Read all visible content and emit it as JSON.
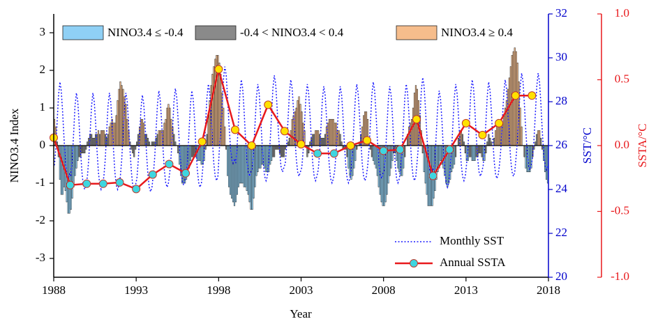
{
  "chart_data": {
    "type": "combo",
    "xlabel": "Year",
    "ylabel": "NINO3.4 Index",
    "y2label": "SST/°C",
    "y3label": "SSTA/°C",
    "x": [
      1988,
      1989,
      1990,
      1991,
      1992,
      1993,
      1994,
      1995,
      1996,
      1997,
      1998,
      1999,
      2000,
      2001,
      2002,
      2003,
      2004,
      2005,
      2006,
      2007,
      2008,
      2009,
      2010,
      2011,
      2012,
      2013,
      2014,
      2015,
      2016,
      2017
    ],
    "xlim": [
      1988,
      2018
    ],
    "xticks": [
      1988,
      1993,
      1998,
      2003,
      2008,
      2013,
      2018
    ],
    "ylim": [
      -3.5,
      3.5
    ],
    "yticks": [
      -3,
      -2,
      -1,
      0,
      1,
      2,
      3
    ],
    "y2lim": [
      20,
      32
    ],
    "y2ticks": [
      20,
      22,
      24,
      26,
      28,
      30,
      32
    ],
    "y2color": "#0000cc",
    "y3lim": [
      -1,
      1
    ],
    "y3ticks": [
      {
        "value": -1,
        "label": "-1.0"
      },
      -0.5,
      {
        "value": 0,
        "label": "0.0"
      },
      0.5,
      {
        "value": 1,
        "label": "1.0"
      }
    ],
    "y3color": "#e8191c",
    "bars": {
      "classes": [
        {
          "name": "NINO3.4 ≤ -0.4",
          "color": "#8fd0f5",
          "max": -0.4
        },
        {
          "name": "-0.4 < NINO3.4  < 0.4",
          "color": "#8a8a8a"
        },
        {
          "name": "NINO3.4  ≥ 0.4",
          "color": "#f6bd8c",
          "min": 0.4
        }
      ],
      "values": [
        [
          0.7,
          0.5,
          0.1,
          -0.3,
          -0.9,
          -1.3,
          -1.3,
          -1.1,
          -1.2,
          -1.5,
          -1.8,
          -1.8
        ],
        [
          -1.7,
          -1.4,
          -1.1,
          -0.8,
          -0.6,
          -0.4,
          -0.3,
          -0.3,
          -0.2,
          -0.2,
          -0.2,
          -0.1
        ],
        [
          0.1,
          0.2,
          0.3,
          0.3,
          0.2,
          0.2,
          0.3,
          0.3,
          0.4,
          0.3,
          0.4,
          0.4
        ],
        [
          0.4,
          0.3,
          0.2,
          0.3,
          0.5,
          0.6,
          0.7,
          0.6,
          0.6,
          0.8,
          1.2,
          1.5
        ],
        [
          1.7,
          1.6,
          1.5,
          1.3,
          1.1,
          0.7,
          0.4,
          0.1,
          -0.1,
          -0.2,
          -0.3,
          -0.1
        ],
        [
          0.1,
          0.3,
          0.5,
          0.7,
          0.7,
          0.6,
          0.3,
          0.3,
          0.2,
          0.1,
          0.0,
          0.1
        ],
        [
          0.1,
          0.1,
          0.2,
          0.3,
          0.4,
          0.4,
          0.4,
          0.4,
          0.6,
          0.7,
          1.0,
          1.1
        ],
        [
          1.0,
          0.7,
          0.5,
          0.3,
          0.1,
          0.0,
          -0.2,
          -0.5,
          -0.8,
          -1.0,
          -1.0,
          -1.0
        ],
        [
          -0.9,
          -0.8,
          -0.6,
          -0.4,
          -0.3,
          -0.3,
          -0.3,
          -0.3,
          -0.4,
          -0.4,
          -0.4,
          -0.5
        ],
        [
          -0.5,
          -0.4,
          -0.1,
          0.3,
          0.8,
          1.2,
          1.6,
          1.9,
          2.1,
          2.3,
          2.4,
          2.4
        ],
        [
          2.2,
          1.9,
          1.4,
          1.0,
          0.5,
          -0.1,
          -0.8,
          -1.1,
          -1.3,
          -1.4,
          -1.5,
          -1.6
        ],
        [
          -1.5,
          -1.3,
          -1.1,
          -1.0,
          -1.0,
          -1.0,
          -1.1,
          -1.1,
          -1.2,
          -1.3,
          -1.5,
          -1.7
        ],
        [
          -1.7,
          -1.4,
          -1.1,
          -0.8,
          -0.7,
          -0.6,
          -0.6,
          -0.5,
          -0.5,
          -0.6,
          -0.7,
          -0.7
        ],
        [
          -0.7,
          -0.5,
          -0.4,
          -0.3,
          -0.3,
          -0.1,
          -0.1,
          -0.1,
          -0.2,
          -0.3,
          -0.3,
          -0.3
        ],
        [
          -0.1,
          0.0,
          0.1,
          0.2,
          0.4,
          0.7,
          0.8,
          0.9,
          1.0,
          1.2,
          1.3,
          1.1
        ],
        [
          0.9,
          0.6,
          0.4,
          0.0,
          -0.3,
          -0.2,
          0.1,
          0.2,
          0.3,
          0.3,
          0.4,
          0.4
        ],
        [
          0.4,
          0.3,
          0.2,
          0.2,
          0.2,
          0.3,
          0.5,
          0.6,
          0.7,
          0.7,
          0.7,
          0.7
        ],
        [
          0.6,
          0.6,
          0.4,
          0.4,
          0.3,
          0.1,
          -0.1,
          -0.1,
          -0.1,
          -0.3,
          -0.6,
          -0.8
        ],
        [
          -0.9,
          -0.8,
          -0.6,
          -0.4,
          -0.1,
          0.0,
          0.1,
          0.3,
          0.5,
          0.8,
          0.9,
          0.9
        ],
        [
          0.7,
          0.2,
          -0.1,
          -0.3,
          -0.4,
          -0.5,
          -0.6,
          -0.8,
          -1.1,
          -1.3,
          -1.5,
          -1.6
        ],
        [
          -1.6,
          -1.5,
          -1.3,
          -1.0,
          -0.8,
          -0.6,
          -0.4,
          -0.2,
          -0.2,
          -0.4,
          -0.6,
          -0.7
        ],
        [
          -0.8,
          -0.8,
          -0.6,
          -0.3,
          0.0,
          0.3,
          0.5,
          0.6,
          0.7,
          1.0,
          1.4,
          1.6
        ],
        [
          1.5,
          1.2,
          0.8,
          0.4,
          -0.2,
          -0.7,
          -1.0,
          -1.3,
          -1.6,
          -1.6,
          -1.6,
          -1.6
        ],
        [
          -1.4,
          -1.2,
          -0.9,
          -0.7,
          -0.6,
          -0.4,
          -0.5,
          -0.6,
          -0.8,
          -1.0,
          -1.1,
          -1.0
        ],
        [
          -0.9,
          -0.7,
          -0.6,
          -0.5,
          -0.3,
          0.0,
          0.2,
          0.4,
          0.4,
          0.3,
          0.1,
          -0.2
        ],
        [
          -0.4,
          -0.4,
          -0.3,
          -0.3,
          -0.4,
          -0.4,
          -0.4,
          -0.3,
          -0.3,
          -0.2,
          -0.2,
          -0.3
        ],
        [
          -0.4,
          -0.4,
          -0.2,
          0.1,
          0.3,
          0.2,
          0.1,
          0.0,
          0.2,
          0.4,
          0.6,
          0.7
        ],
        [
          0.6,
          0.6,
          0.6,
          0.8,
          1.0,
          1.2,
          1.5,
          1.8,
          2.1,
          2.4,
          2.5,
          2.6
        ],
        [
          2.5,
          2.2,
          1.7,
          1.0,
          0.5,
          0.0,
          -0.3,
          -0.6,
          -0.7,
          -0.7,
          -0.7,
          -0.6
        ],
        [
          -0.3,
          -0.1,
          0.1,
          0.3,
          0.4,
          0.4,
          0.2,
          -0.1,
          -0.4,
          -0.7,
          -0.9,
          -1.0
        ]
      ]
    },
    "series": [
      {
        "name": "Monthly SST",
        "color": "#1a1aff",
        "axis": "y2",
        "style": "dotted",
        "values": [
          [
            25.1,
            25.9,
            27.1,
            28.3,
            28.9,
            28.5,
            27.5,
            26.3,
            25.3,
            24.7,
            24.5,
            24.7
          ],
          [
            24.6,
            25.4,
            26.6,
            27.8,
            28.4,
            28.0,
            27.0,
            25.8,
            24.8,
            24.2,
            24.0,
            24.2
          ],
          [
            24.6,
            25.4,
            26.6,
            27.8,
            28.4,
            28.0,
            27.0,
            25.8,
            24.8,
            24.2,
            24.0,
            24.2
          ],
          [
            24.6,
            25.4,
            26.6,
            27.8,
            28.4,
            28.0,
            27.0,
            25.8,
            24.8,
            24.2,
            24.0,
            24.2
          ],
          [
            24.6,
            25.4,
            26.6,
            27.8,
            28.4,
            28.0,
            27.0,
            25.8,
            24.8,
            24.2,
            24.0,
            24.2
          ],
          [
            24.5,
            25.3,
            26.5,
            27.7,
            28.3,
            27.9,
            26.9,
            25.7,
            24.7,
            24.1,
            23.9,
            24.1
          ],
          [
            24.7,
            25.5,
            26.7,
            27.9,
            28.5,
            28.1,
            27.1,
            25.9,
            24.9,
            24.3,
            24.1,
            24.3
          ],
          [
            24.8,
            25.6,
            26.8,
            28.0,
            28.6,
            28.2,
            27.2,
            26.0,
            25.0,
            24.4,
            24.2,
            24.4
          ],
          [
            24.7,
            25.5,
            26.7,
            27.9,
            28.5,
            28.1,
            27.1,
            25.9,
            24.9,
            24.3,
            24.1,
            24.3
          ],
          [
            25.0,
            25.8,
            27.0,
            28.2,
            28.8,
            28.4,
            27.4,
            26.2,
            25.2,
            24.6,
            24.4,
            24.6
          ],
          [
            25.8,
            26.6,
            27.8,
            29.0,
            29.6,
            29.2,
            28.2,
            27.0,
            26.0,
            25.4,
            25.2,
            25.4
          ],
          [
            25.2,
            26.0,
            27.2,
            28.4,
            29.0,
            28.6,
            27.6,
            26.4,
            25.4,
            24.8,
            24.6,
            24.8
          ],
          [
            25.0,
            25.8,
            27.0,
            28.2,
            28.8,
            28.4,
            27.4,
            26.2,
            25.2,
            24.6,
            24.4,
            24.6
          ],
          [
            25.4,
            26.2,
            27.4,
            28.6,
            29.2,
            28.8,
            27.8,
            26.6,
            25.6,
            25.0,
            24.8,
            25.0
          ],
          [
            25.2,
            26.0,
            27.2,
            28.4,
            29.0,
            28.6,
            27.6,
            26.4,
            25.4,
            24.8,
            24.6,
            24.8
          ],
          [
            25.0,
            25.8,
            27.0,
            28.2,
            28.8,
            28.4,
            27.4,
            26.2,
            25.2,
            24.6,
            24.4,
            24.6
          ],
          [
            24.9,
            25.7,
            26.9,
            28.1,
            28.7,
            28.3,
            27.3,
            26.1,
            25.1,
            24.5,
            24.3,
            24.5
          ],
          [
            24.9,
            25.7,
            26.9,
            28.1,
            28.7,
            28.3,
            27.3,
            26.1,
            25.1,
            24.5,
            24.3,
            24.5
          ],
          [
            25.0,
            25.8,
            27.0,
            28.2,
            28.8,
            28.4,
            27.4,
            26.2,
            25.2,
            24.6,
            24.4,
            24.6
          ],
          [
            25.1,
            25.9,
            27.1,
            28.3,
            28.9,
            28.5,
            27.5,
            26.3,
            25.3,
            24.7,
            24.5,
            24.7
          ],
          [
            24.9,
            25.7,
            26.9,
            28.1,
            28.7,
            28.3,
            27.3,
            26.1,
            25.1,
            24.5,
            24.3,
            24.5
          ],
          [
            25.0,
            25.8,
            27.0,
            28.2,
            28.8,
            28.4,
            27.4,
            26.2,
            25.2,
            24.6,
            24.4,
            24.6
          ],
          [
            25.3,
            26.1,
            27.3,
            28.5,
            29.1,
            28.7,
            27.7,
            26.5,
            25.5,
            24.9,
            24.7,
            24.9
          ],
          [
            24.7,
            25.5,
            26.7,
            27.9,
            28.5,
            28.1,
            27.1,
            25.9,
            24.9,
            24.3,
            24.1,
            24.3
          ],
          [
            25.0,
            25.8,
            27.0,
            28.2,
            28.8,
            28.4,
            27.4,
            26.2,
            25.2,
            24.6,
            24.4,
            24.6
          ],
          [
            25.2,
            26.0,
            27.2,
            28.4,
            29.0,
            28.6,
            27.6,
            26.4,
            25.4,
            24.8,
            24.6,
            24.8
          ],
          [
            25.1,
            25.9,
            27.1,
            28.3,
            28.9,
            28.5,
            27.5,
            26.3,
            25.3,
            24.7,
            24.5,
            24.7
          ],
          [
            25.2,
            26.0,
            27.2,
            28.4,
            29.0,
            28.6,
            27.6,
            26.4,
            25.4,
            24.8,
            24.6,
            24.8
          ],
          [
            25.5,
            26.3,
            27.5,
            28.7,
            29.3,
            28.9,
            27.9,
            26.7,
            25.7,
            25.1,
            24.9,
            25.1
          ],
          [
            25.5,
            26.3,
            27.5,
            28.7,
            29.3,
            28.9,
            27.9,
            26.7,
            25.7,
            25.1,
            24.9,
            25.1
          ]
        ]
      },
      {
        "name": "Annual SSTA",
        "color": "#e8191c",
        "axis": "y3",
        "style": "solid",
        "marker_colors": {
          "positive": "#ffe100",
          "negative": "#3ed6e0"
        },
        "values": [
          0.06,
          -0.3,
          -0.29,
          -0.29,
          -0.28,
          -0.33,
          -0.22,
          -0.14,
          -0.21,
          0.03,
          0.58,
          0.12,
          0.0,
          0.31,
          0.11,
          0.01,
          -0.06,
          -0.06,
          0.0,
          0.04,
          -0.04,
          -0.03,
          0.2,
          -0.23,
          -0.03,
          0.17,
          0.08,
          0.17,
          0.38,
          0.38
        ]
      }
    ]
  }
}
